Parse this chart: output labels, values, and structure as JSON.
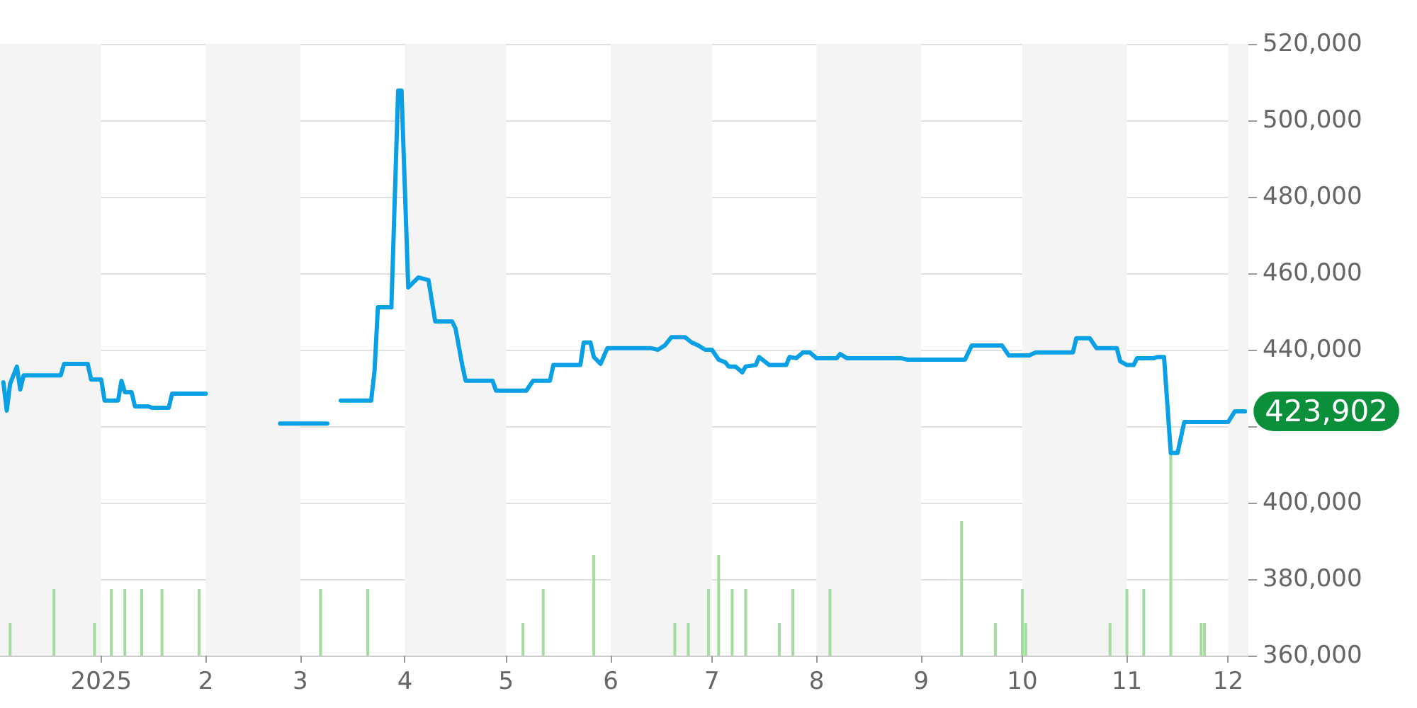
{
  "chart_data": {
    "type": "line",
    "xlim": [
      "2024-12-02",
      "2025-12-07"
    ],
    "xticks": [
      {
        "value": "2025-01-01",
        "label": "2025"
      },
      {
        "value": "2025-02-01",
        "label": "2"
      },
      {
        "value": "2025-03-01",
        "label": "3"
      },
      {
        "value": "2025-04-01",
        "label": "4"
      },
      {
        "value": "2025-05-01",
        "label": "5"
      },
      {
        "value": "2025-06-01",
        "label": "6"
      },
      {
        "value": "2025-07-01",
        "label": "7"
      },
      {
        "value": "2025-08-01",
        "label": "8"
      },
      {
        "value": "2025-09-01",
        "label": "9"
      },
      {
        "value": "2025-10-01",
        "label": "10"
      },
      {
        "value": "2025-11-01",
        "label": "11"
      },
      {
        "value": "2025-12-01",
        "label": "12"
      }
    ],
    "ylim": [
      360000,
      520000
    ],
    "yticks": [
      {
        "value": 360000,
        "label": "360,000"
      },
      {
        "value": 380000,
        "label": "380,000"
      },
      {
        "value": 400000,
        "label": "400,000"
      },
      {
        "value": 420000,
        "label": null
      },
      {
        "value": 440000,
        "label": "440,000"
      },
      {
        "value": 460000,
        "label": "460,000"
      },
      {
        "value": 480000,
        "label": "480,000"
      },
      {
        "value": 500000,
        "label": "500,000"
      },
      {
        "value": 520000,
        "label": "520,000"
      }
    ],
    "grid": "y",
    "marker": "none",
    "line_style": "solid",
    "bands": [
      {
        "axis": "x",
        "from": "2024-12-02",
        "to": "2025-01-01",
        "color": "#f4f4f4"
      },
      {
        "axis": "x",
        "from": "2025-02-01",
        "to": "2025-03-01",
        "color": "#f4f4f4"
      },
      {
        "axis": "x",
        "from": "2025-04-01",
        "to": "2025-05-01",
        "color": "#f4f4f4"
      },
      {
        "axis": "x",
        "from": "2025-06-01",
        "to": "2025-07-01",
        "color": "#f4f4f4"
      },
      {
        "axis": "x",
        "from": "2025-08-01",
        "to": "2025-09-01",
        "color": "#f4f4f4"
      },
      {
        "axis": "x",
        "from": "2025-10-01",
        "to": "2025-11-01",
        "color": "#f4f4f4"
      },
      {
        "axis": "x",
        "from": "2025-12-01",
        "to": "2025-12-07",
        "color": "#f4f4f4"
      }
    ],
    "series": [
      {
        "type": "bar",
        "color": "#a3dba0",
        "x": [
          "2024-12-05",
          "2024-12-18",
          "2024-12-30",
          "2025-01-04",
          "2025-01-08",
          "2025-01-13",
          "2025-01-19",
          "2025-01-30",
          "2025-03-07",
          "2025-03-21",
          "2025-05-06",
          "2025-05-12",
          "2025-05-27",
          "2025-06-20",
          "2025-06-24",
          "2025-06-30",
          "2025-07-03",
          "2025-07-07",
          "2025-07-11",
          "2025-07-21",
          "2025-07-25",
          "2025-08-05",
          "2025-09-13",
          "2025-09-23",
          "2025-10-01",
          "2025-10-02",
          "2025-10-27",
          "2025-11-01",
          "2025-11-06",
          "2025-11-14",
          "2025-11-23",
          "2025-11-24"
        ],
        "values": [
          368500,
          377400,
          368500,
          377400,
          377400,
          377400,
          377400,
          377400,
          377400,
          377400,
          368500,
          377400,
          386300,
          368500,
          368500,
          377400,
          386300,
          377400,
          377400,
          368500,
          377400,
          377400,
          395200,
          368500,
          377400,
          368500,
          368500,
          377400,
          377400,
          413000,
          368500,
          368500
        ]
      },
      {
        "color": "#0aa0e6",
        "x": [
          "2024-12-03",
          "2024-12-04",
          "2024-12-05",
          "2024-12-07",
          "2024-12-08",
          "2024-12-09",
          "2024-12-20",
          "2024-12-21",
          "2024-12-28",
          "2024-12-29",
          "2025-01-01",
          "2025-01-02",
          "2025-01-06",
          "2025-01-07",
          "2025-01-08",
          "2025-01-10",
          "2025-01-11",
          "2025-01-15",
          "2025-01-16",
          "2025-01-21",
          "2025-01-22",
          "2025-02-01",
          "2025-02-10",
          "2025-02-23",
          "2025-03-09",
          "2025-03-11",
          "2025-03-13",
          "2025-03-22",
          "2025-03-23",
          "2025-03-24",
          "2025-03-28",
          "2025-03-30",
          "2025-03-31",
          "2025-04-02",
          "2025-04-05",
          "2025-04-08",
          "2025-04-10",
          "2025-04-15",
          "2025-04-16",
          "2025-04-18",
          "2025-04-19",
          "2025-04-27",
          "2025-04-28",
          "2025-05-07",
          "2025-05-09",
          "2025-05-14",
          "2025-05-15",
          "2025-05-23",
          "2025-05-24",
          "2025-05-26",
          "2025-05-27",
          "2025-05-29",
          "2025-05-31",
          "2025-06-13",
          "2025-06-15",
          "2025-06-17",
          "2025-06-19",
          "2025-06-23",
          "2025-06-25",
          "2025-06-27",
          "2025-06-29",
          "2025-07-01",
          "2025-07-03",
          "2025-07-05",
          "2025-07-06",
          "2025-07-08",
          "2025-07-10",
          "2025-07-11",
          "2025-07-14",
          "2025-07-15",
          "2025-07-18",
          "2025-07-23",
          "2025-07-24",
          "2025-07-26",
          "2025-07-28",
          "2025-07-30",
          "2025-08-01",
          "2025-08-07",
          "2025-08-08",
          "2025-08-10",
          "2025-08-26",
          "2025-08-28",
          "2025-09-14",
          "2025-09-16",
          "2025-09-25",
          "2025-09-27",
          "2025-10-03",
          "2025-10-05",
          "2025-10-16",
          "2025-10-17",
          "2025-10-21",
          "2025-10-23",
          "2025-10-29",
          "2025-10-30",
          "2025-11-01",
          "2025-11-03",
          "2025-11-04",
          "2025-11-09",
          "2025-11-10",
          "2025-11-12",
          "2025-11-14",
          "2025-11-16",
          "2025-11-18",
          "2025-12-01",
          "2025-12-03",
          "2025-12-06"
        ],
        "values": [
          431500,
          424100,
          431100,
          435600,
          429600,
          433300,
          433300,
          436300,
          436300,
          432200,
          432200,
          426700,
          426700,
          431900,
          428900,
          428900,
          425200,
          425200,
          424800,
          424800,
          428500,
          428500,
          null,
          420700,
          420700,
          null,
          426700,
          426700,
          434400,
          451100,
          451100,
          507800,
          507800,
          456300,
          458900,
          458200,
          447400,
          447400,
          445600,
          436000,
          431900,
          431900,
          429300,
          429300,
          431900,
          431900,
          436000,
          436000,
          441900,
          441900,
          438100,
          436300,
          440400,
          440400,
          440000,
          441100,
          443300,
          443300,
          441900,
          441100,
          440000,
          440000,
          437400,
          436700,
          435600,
          435600,
          434100,
          435600,
          436000,
          438100,
          436000,
          436000,
          438100,
          437800,
          439300,
          439300,
          437800,
          437800,
          438900,
          437800,
          437800,
          437400,
          437400,
          441100,
          441100,
          438500,
          438500,
          439300,
          439300,
          443000,
          443000,
          440400,
          440400,
          437000,
          436000,
          436000,
          437800,
          437800,
          438100,
          438100,
          413000,
          413000,
          421100,
          421100,
          423902,
          423902
        ],
        "value_labels": [
          null,
          null,
          null,
          null,
          null,
          null,
          null,
          null,
          null,
          null,
          null,
          null,
          null,
          null,
          null,
          null,
          null,
          null,
          null,
          null,
          null,
          null,
          null,
          null,
          null,
          null,
          null,
          null,
          null,
          null,
          null,
          null,
          null,
          null,
          null,
          null,
          null,
          null,
          null,
          null,
          null,
          null,
          null,
          null,
          null,
          null,
          null,
          null,
          null,
          null,
          null,
          null,
          null,
          null,
          null,
          null,
          null,
          null,
          null,
          null,
          null,
          null,
          null,
          null,
          null,
          null,
          null,
          null,
          null,
          null,
          null,
          null,
          null,
          null,
          null,
          null,
          null,
          null,
          null,
          null,
          null,
          null,
          null,
          null,
          null,
          null,
          null,
          null,
          null,
          null,
          null,
          null,
          null,
          null,
          null,
          null,
          null,
          null,
          null,
          null,
          null,
          null,
          null,
          null,
          null,
          "423,902"
        ]
      }
    ]
  }
}
